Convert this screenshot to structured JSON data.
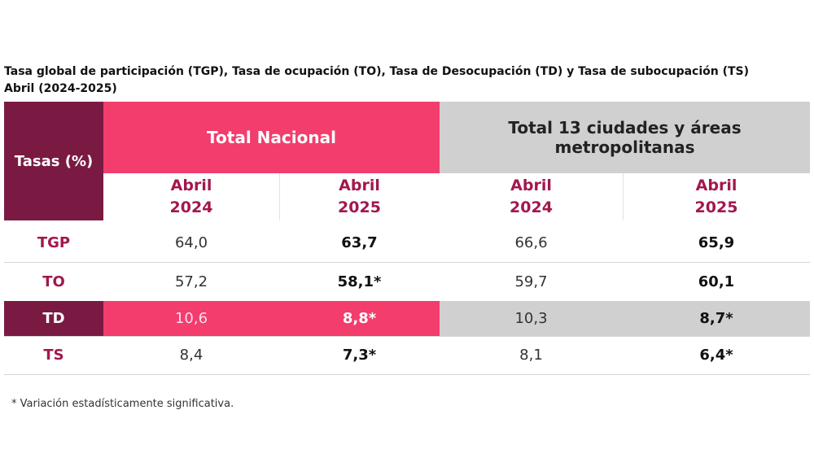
{
  "title": [
    "Tasa global de participación (TGP), Tasa de ocupación (TO), Tasa de Desocupación (TD) y Tasa de subocupación (TS)",
    "Abril (2024-2025)"
  ],
  "table": {
    "corner": "Tasas (%)",
    "groups": [
      "Total Nacional",
      "Total 13 ciudades y áreas metropolitanas"
    ],
    "columns": [
      {
        "month": "Abril",
        "year": "2024"
      },
      {
        "month": "Abril",
        "year": "2025"
      },
      {
        "month": "Abril",
        "year": "2024"
      },
      {
        "month": "Abril",
        "year": "2025"
      }
    ],
    "rows": [
      [
        "TGP",
        "64,0",
        "63,7",
        "66,6",
        "65,9"
      ],
      [
        "TO",
        "57,2",
        "58,1*",
        "59,7",
        "60,1"
      ],
      [
        "TD",
        "10,6",
        "8,8*",
        "10,3",
        "8,7*"
      ],
      [
        "TS",
        "8,4",
        "7,3*",
        "8,1",
        "6,4*"
      ]
    ]
  },
  "footnote": "* Variación estadísticamente significativa."
}
